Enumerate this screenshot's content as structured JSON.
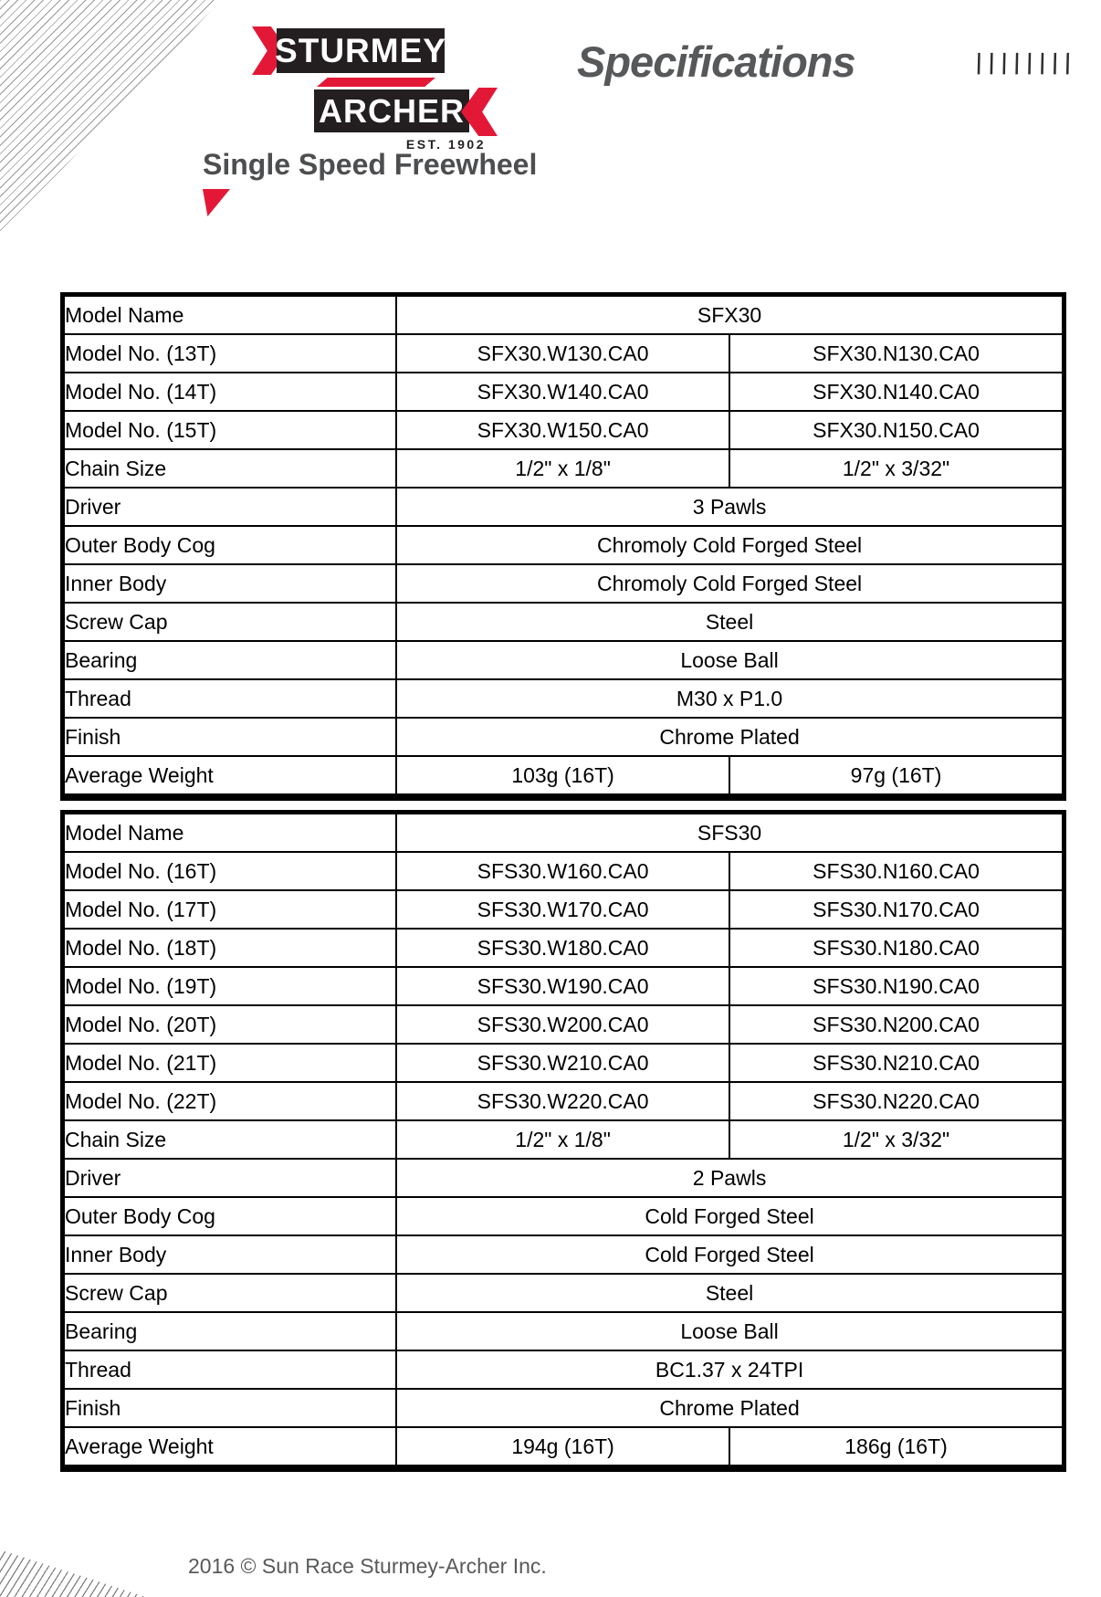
{
  "logo": {
    "sturmey": "STURMEY",
    "archer": "ARCHER",
    "est": "EST. 1902"
  },
  "header": {
    "specifications": "Specifications",
    "slashes": "////////"
  },
  "page_title": "Single Speed Freewheel",
  "footer": {
    "copyright": "2016 © Sun Race Sturmey-Archer Inc."
  },
  "colors": {
    "brand_red": "#e31837",
    "logo_black": "#231f20",
    "heading_gray": "#57585a",
    "footer_gray": "#58595b"
  },
  "tables": [
    {
      "model_name": "SFX30",
      "rows": [
        {
          "label": "Model Name",
          "cells": [
            {
              "text": "SFX30",
              "span": 2
            }
          ]
        },
        {
          "label": "Model No. (13T)",
          "cells": [
            {
              "text": "SFX30.W130.CA0"
            },
            {
              "text": "SFX30.N130.CA0"
            }
          ]
        },
        {
          "label": "Model No. (14T)",
          "cells": [
            {
              "text": "SFX30.W140.CA0"
            },
            {
              "text": "SFX30.N140.CA0"
            }
          ]
        },
        {
          "label": "Model No. (15T)",
          "cells": [
            {
              "text": "SFX30.W150.CA0"
            },
            {
              "text": "SFX30.N150.CA0"
            }
          ]
        },
        {
          "label": "Chain Size",
          "cells": [
            {
              "text": "1/2\" x 1/8\""
            },
            {
              "text": "1/2\" x 3/32\""
            }
          ]
        },
        {
          "label": "Driver",
          "cells": [
            {
              "text": "3 Pawls",
              "span": 2
            }
          ]
        },
        {
          "label": "Outer Body Cog",
          "cells": [
            {
              "text": "Chromoly Cold Forged Steel",
              "span": 2
            }
          ]
        },
        {
          "label": "Inner Body",
          "cells": [
            {
              "text": "Chromoly Cold Forged Steel",
              "span": 2
            }
          ]
        },
        {
          "label": "Screw Cap",
          "cells": [
            {
              "text": "Steel",
              "span": 2
            }
          ]
        },
        {
          "label": "Bearing",
          "cells": [
            {
              "text": "Loose Ball",
              "span": 2
            }
          ]
        },
        {
          "label": "Thread",
          "cells": [
            {
              "text": "M30 x P1.0",
              "span": 2
            }
          ]
        },
        {
          "label": "Finish",
          "cells": [
            {
              "text": "Chrome Plated",
              "span": 2
            }
          ]
        },
        {
          "label": "Average Weight",
          "cells": [
            {
              "text": "103g (16T)"
            },
            {
              "text": "97g (16T)"
            }
          ]
        }
      ]
    },
    {
      "model_name": "SFS30",
      "rows": [
        {
          "label": "Model Name",
          "cells": [
            {
              "text": "SFS30",
              "span": 2
            }
          ]
        },
        {
          "label": "Model No. (16T)",
          "cells": [
            {
              "text": "SFS30.W160.CA0"
            },
            {
              "text": "SFS30.N160.CA0"
            }
          ]
        },
        {
          "label": "Model No. (17T)",
          "cells": [
            {
              "text": "SFS30.W170.CA0"
            },
            {
              "text": "SFS30.N170.CA0"
            }
          ]
        },
        {
          "label": "Model No. (18T)",
          "cells": [
            {
              "text": "SFS30.W180.CA0"
            },
            {
              "text": "SFS30.N180.CA0"
            }
          ]
        },
        {
          "label": "Model No. (19T)",
          "cells": [
            {
              "text": "SFS30.W190.CA0"
            },
            {
              "text": "SFS30.N190.CA0"
            }
          ]
        },
        {
          "label": "Model No. (20T)",
          "cells": [
            {
              "text": "SFS30.W200.CA0"
            },
            {
              "text": "SFS30.N200.CA0"
            }
          ]
        },
        {
          "label": "Model No. (21T)",
          "cells": [
            {
              "text": "SFS30.W210.CA0"
            },
            {
              "text": "SFS30.N210.CA0"
            }
          ]
        },
        {
          "label": "Model No. (22T)",
          "cells": [
            {
              "text": "SFS30.W220.CA0"
            },
            {
              "text": "SFS30.N220.CA0"
            }
          ]
        },
        {
          "label": "Chain Size",
          "cells": [
            {
              "text": "1/2\" x 1/8\""
            },
            {
              "text": "1/2\" x 3/32\""
            }
          ]
        },
        {
          "label": "Driver",
          "cells": [
            {
              "text": "2 Pawls",
              "span": 2
            }
          ]
        },
        {
          "label": "Outer Body Cog",
          "cells": [
            {
              "text": "Cold Forged Steel",
              "span": 2
            }
          ]
        },
        {
          "label": "Inner Body",
          "cells": [
            {
              "text": "Cold Forged Steel",
              "span": 2
            }
          ]
        },
        {
          "label": "Screw Cap",
          "cells": [
            {
              "text": "Steel",
              "span": 2
            }
          ]
        },
        {
          "label": "Bearing",
          "cells": [
            {
              "text": "Loose Ball",
              "span": 2
            }
          ]
        },
        {
          "label": "Thread",
          "cells": [
            {
              "text": "BC1.37 x 24TPI",
              "span": 2
            }
          ]
        },
        {
          "label": "Finish",
          "cells": [
            {
              "text": "Chrome Plated",
              "span": 2
            }
          ]
        },
        {
          "label": "Average Weight",
          "cells": [
            {
              "text": "194g (16T)"
            },
            {
              "text": "186g (16T)"
            }
          ]
        }
      ]
    }
  ]
}
